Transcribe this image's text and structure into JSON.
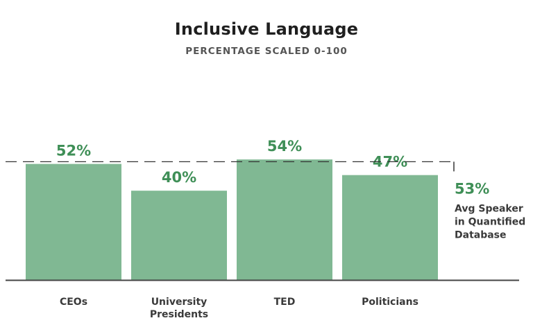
{
  "chart_data": {
    "type": "bar",
    "title": "Inclusive Language",
    "subtitle": "PERCENTAGE SCALED 0-100",
    "categories": [
      [
        "CEOs"
      ],
      [
        "University",
        "Presidents"
      ],
      [
        "TED"
      ],
      [
        "Politicians"
      ]
    ],
    "values": [
      52,
      40,
      54,
      47
    ],
    "value_labels": [
      "52%",
      "40%",
      "54%",
      "47%"
    ],
    "ylim": [
      0,
      100
    ],
    "grid": false,
    "reference_line": {
      "value": 53,
      "value_label": "53%",
      "label_lines": [
        "Avg Speaker",
        "in Quantified",
        "Database"
      ]
    },
    "colors": {
      "bar": "#80b893",
      "label": "#3f8f57",
      "axis": "#444444",
      "reference": "#333333"
    }
  }
}
